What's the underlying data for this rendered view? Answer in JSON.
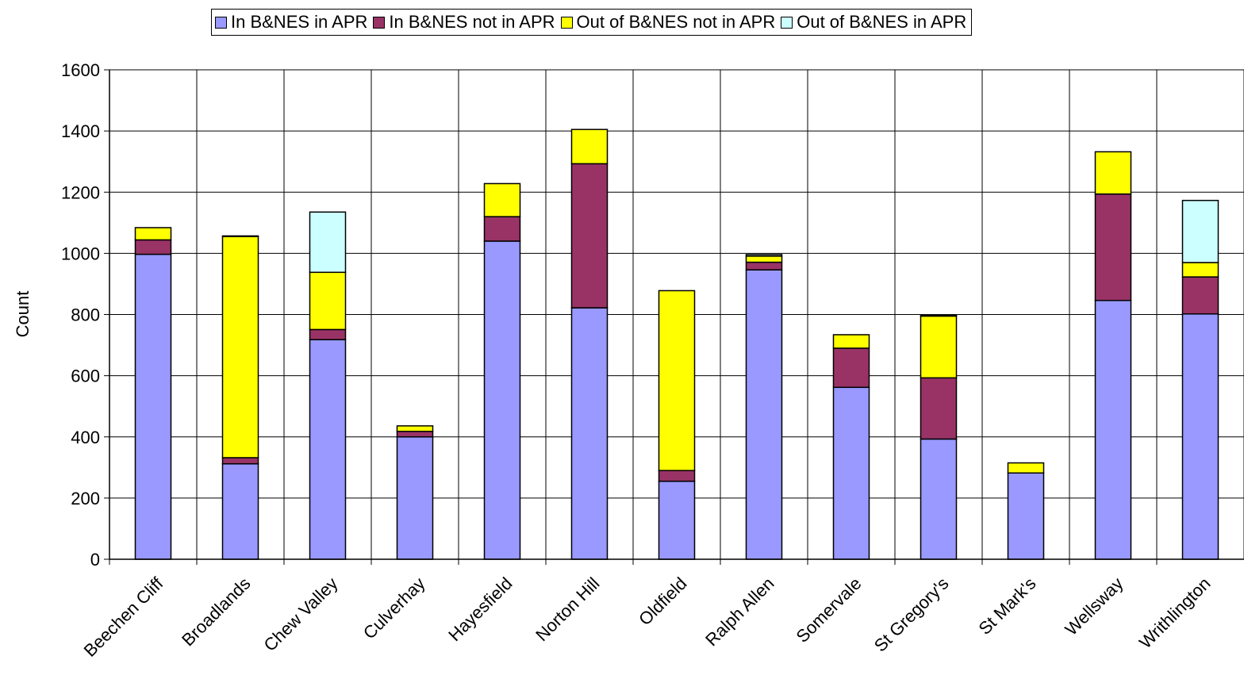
{
  "chart_data": {
    "type": "bar",
    "stacked": true,
    "title": "",
    "xlabel": "",
    "ylabel": "Count",
    "ylim": [
      0,
      1600
    ],
    "yticks": [
      0,
      200,
      400,
      600,
      800,
      1000,
      1200,
      1400,
      1600
    ],
    "grid": true,
    "legend_position": "top",
    "categories": [
      "Beechen Cliff",
      "Broadlands",
      "Chew Valley",
      "Culverhay",
      "Hayesfield",
      "Norton Hill",
      "Oldfield",
      "Ralph Allen",
      "Somervale",
      "St Gregory's",
      "St Mark's",
      "Wellsway",
      "Writhlington"
    ],
    "series": [
      {
        "name": "In B&NES in APR",
        "color": "#9999ff",
        "values": [
          997,
          312,
          718,
          400,
          1040,
          822,
          255,
          946,
          562,
          393,
          282,
          846,
          802
        ]
      },
      {
        "name": "In B&NES not in APR",
        "color": "#993366",
        "values": [
          47,
          20,
          33,
          18,
          80,
          471,
          35,
          25,
          128,
          200,
          0,
          348,
          121
        ]
      },
      {
        "name": "Out of B&NES not in APR",
        "color": "#ffff00",
        "values": [
          40,
          723,
          187,
          18,
          108,
          112,
          588,
          20,
          44,
          202,
          33,
          138,
          47
        ]
      },
      {
        "name": "Out of B&NES in APR",
        "color": "#ccffff",
        "values": [
          0,
          2,
          197,
          0,
          0,
          0,
          0,
          5,
          0,
          2,
          0,
          0,
          203
        ]
      }
    ]
  }
}
